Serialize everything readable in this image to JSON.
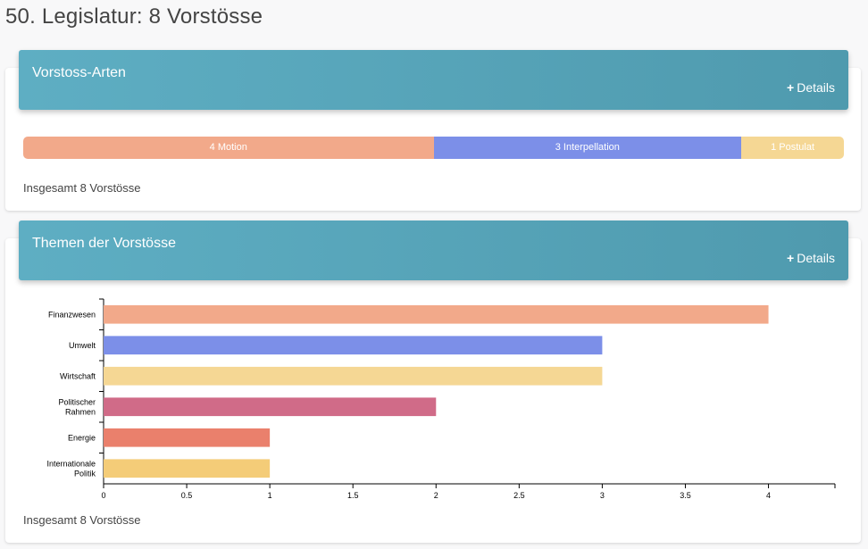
{
  "page": {
    "title": "50. Legislatur: 8 Vorstösse"
  },
  "types_card": {
    "title": "Vorstoss-Arten",
    "details_plus": "+",
    "details_label": "Details",
    "total": "Insgesamt 8 Vorstösse",
    "segments": [
      {
        "label": "4 Motion",
        "value": 4,
        "color": "#f2a98a"
      },
      {
        "label": "3 Interpellation",
        "value": 3,
        "color": "#7c8fe8"
      },
      {
        "label": "1 Postulat",
        "value": 1,
        "color": "#f5d794"
      }
    ]
  },
  "topics_card": {
    "title": "Themen der Vorstösse",
    "details_plus": "+",
    "details_label": "Details",
    "total": "Insgesamt 8 Vorstösse"
  },
  "chart_data": {
    "type": "bar",
    "orientation": "horizontal",
    "categories": [
      [
        "Finanzwesen"
      ],
      [
        "Umwelt"
      ],
      [
        "Wirtschaft"
      ],
      [
        "Politischer",
        "Rahmen"
      ],
      [
        "Energie"
      ],
      [
        "Internationale",
        "Politik"
      ]
    ],
    "values": [
      4,
      3,
      3,
      2,
      1,
      1
    ],
    "colors": [
      "#f2a98a",
      "#7c8fe8",
      "#f5d794",
      "#d06b88",
      "#ea806c",
      "#f4cc78"
    ],
    "xlim": [
      0,
      4.4
    ],
    "xticks": [
      "0",
      "0.5",
      "1",
      "1.5",
      "2",
      "2.5",
      "3",
      "3.5",
      "4"
    ],
    "xtick_values": [
      0,
      0.5,
      1,
      1.5,
      2,
      2.5,
      3,
      3.5,
      4
    ],
    "grid": false
  }
}
